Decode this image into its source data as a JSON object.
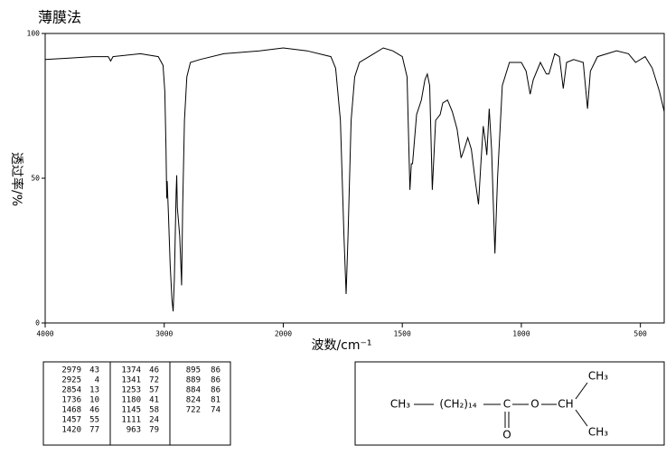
{
  "chart_data": {
    "type": "line",
    "title": "薄膜法",
    "y_label": "透过率/%",
    "x_label": "波数/cm⁻¹",
    "color": "#000000",
    "xlim": [
      4000,
      400
    ],
    "xticks": [
      4000,
      3000,
      2000,
      1500,
      1000,
      500
    ],
    "ylim": [
      0,
      100
    ],
    "yticks": [
      0,
      50,
      100
    ],
    "x": [
      4000,
      3800,
      3600,
      3470,
      3450,
      3430,
      3200,
      3050,
      3010,
      2995,
      2985,
      2979,
      2975,
      2965,
      2950,
      2935,
      2925,
      2915,
      2900,
      2895,
      2890,
      2870,
      2860,
      2854,
      2845,
      2830,
      2810,
      2780,
      2700,
      2500,
      2200,
      2000,
      1900,
      1800,
      1780,
      1760,
      1745,
      1736,
      1728,
      1715,
      1700,
      1680,
      1620,
      1580,
      1540,
      1500,
      1480,
      1468,
      1462,
      1457,
      1440,
      1420,
      1405,
      1395,
      1385,
      1374,
      1360,
      1341,
      1330,
      1310,
      1290,
      1270,
      1253,
      1240,
      1225,
      1210,
      1195,
      1180,
      1170,
      1160,
      1150,
      1145,
      1135,
      1125,
      1111,
      1100,
      1080,
      1050,
      1000,
      980,
      963,
      950,
      920,
      895,
      884,
      860,
      840,
      824,
      810,
      780,
      740,
      722,
      710,
      680,
      600,
      550,
      520,
      480,
      450,
      420,
      400
    ],
    "values": [
      91,
      91.5,
      92,
      92,
      90.5,
      92,
      93,
      92,
      89,
      80,
      60,
      43,
      49,
      38,
      20,
      8,
      4,
      15,
      45,
      51,
      40,
      30,
      20,
      13,
      40,
      70,
      85,
      90,
      91,
      93,
      94,
      95,
      94,
      92,
      88,
      70,
      30,
      10,
      30,
      70,
      85,
      90,
      93,
      95,
      94,
      92,
      85,
      46,
      55,
      55,
      72,
      77,
      84,
      86,
      82,
      46,
      70,
      72,
      76,
      77,
      73,
      67,
      57,
      60,
      64,
      60,
      50,
      41,
      55,
      68,
      62,
      58,
      74,
      60,
      24,
      50,
      82,
      90,
      90,
      87,
      79,
      84,
      90,
      86,
      86,
      93,
      92,
      81,
      90,
      91,
      90,
      74,
      87,
      92,
      94,
      93,
      90,
      92,
      88,
      80,
      73
    ]
  },
  "peak_table": [
    [
      [
        2979,
        43
      ],
      [
        2925,
        4
      ],
      [
        2854,
        13
      ],
      [
        1736,
        10
      ],
      [
        1468,
        46
      ],
      [
        1457,
        55
      ],
      [
        1420,
        77
      ]
    ],
    [
      [
        1374,
        46
      ],
      [
        1341,
        72
      ],
      [
        1253,
        57
      ],
      [
        1180,
        41
      ],
      [
        1145,
        58
      ],
      [
        1111,
        24
      ],
      [
        963,
        79
      ]
    ],
    [
      [
        895,
        86
      ],
      [
        889,
        86
      ],
      [
        884,
        86
      ],
      [
        824,
        81
      ],
      [
        722,
        74
      ]
    ]
  ],
  "structure": {
    "labels": [
      "CH₃",
      "(CH₂)₁₄",
      "C",
      "O",
      "CH",
      "CH₃",
      "CH₃",
      "O"
    ]
  }
}
